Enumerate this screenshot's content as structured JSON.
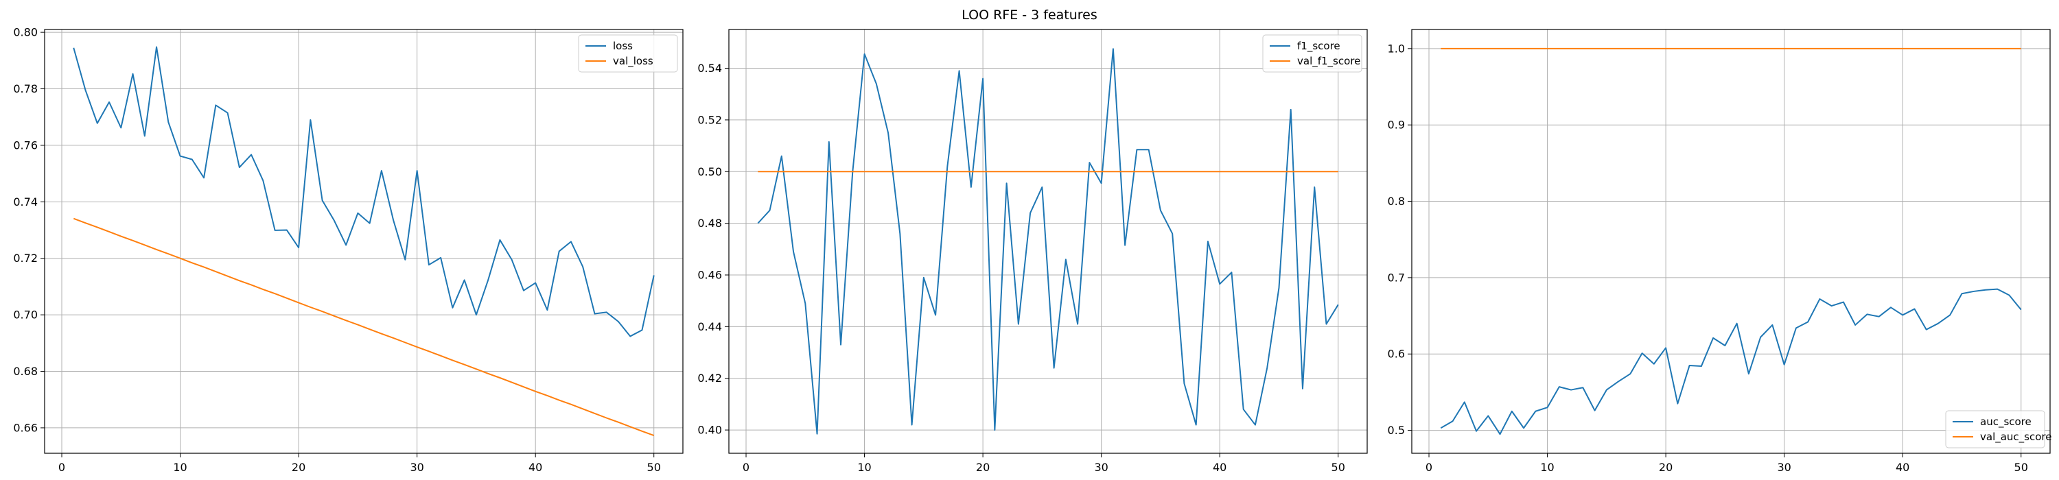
{
  "figure": {
    "title": "LOO RFE - 3 features"
  },
  "chart_data": [
    {
      "type": "line",
      "title": "",
      "xlabel": "",
      "ylabel": "",
      "xlim": [
        -1.45,
        52.45
      ],
      "ylim": [
        0.651,
        0.801
      ],
      "xticks": [
        0,
        10,
        20,
        30,
        40,
        50
      ],
      "yticks": [
        0.66,
        0.68,
        0.7,
        0.72,
        0.74,
        0.76,
        0.78,
        0.8
      ],
      "ytick_labels": [
        "0.66",
        "0.68",
        "0.70",
        "0.72",
        "0.74",
        "0.76",
        "0.78",
        "0.80"
      ],
      "grid": true,
      "legend_position": "top-right",
      "x": [
        1,
        2,
        3,
        4,
        5,
        6,
        7,
        8,
        9,
        10,
        11,
        12,
        13,
        14,
        15,
        16,
        17,
        18,
        19,
        20,
        21,
        22,
        23,
        24,
        25,
        26,
        27,
        28,
        29,
        30,
        31,
        32,
        33,
        34,
        35,
        36,
        37,
        38,
        39,
        40,
        41,
        42,
        43,
        44,
        45,
        46,
        47,
        48,
        49,
        50
      ],
      "series": [
        {
          "name": "loss",
          "color": "#1f77b4",
          "values": [
            0.7945,
            0.7795,
            0.7678,
            0.7753,
            0.7662,
            0.7853,
            0.7633,
            0.7948,
            0.7682,
            0.7562,
            0.755,
            0.7485,
            0.7742,
            0.7715,
            0.7522,
            0.7567,
            0.7475,
            0.7299,
            0.73,
            0.7238,
            0.769,
            0.7405,
            0.7334,
            0.7247,
            0.736,
            0.7324,
            0.751,
            0.7335,
            0.7195,
            0.751,
            0.7177,
            0.7202,
            0.7025,
            0.7123,
            0.7,
            0.7123,
            0.7265,
            0.7195,
            0.7086,
            0.7113,
            0.7017,
            0.7225,
            0.7259,
            0.717,
            0.7004,
            0.7009,
            0.6976,
            0.6924,
            0.6946,
            0.714
          ]
        },
        {
          "name": "val_loss",
          "color": "#ff7f0e",
          "values": [
            0.7341,
            0.7325,
            0.731,
            0.7294,
            0.7278,
            0.7263,
            0.7247,
            0.7231,
            0.7216,
            0.72,
            0.7184,
            0.7169,
            0.7153,
            0.7137,
            0.7121,
            0.7106,
            0.709,
            0.7075,
            0.7059,
            0.7043,
            0.7027,
            0.7012,
            0.6996,
            0.698,
            0.6965,
            0.6949,
            0.6933,
            0.6918,
            0.6902,
            0.6886,
            0.6871,
            0.6855,
            0.6839,
            0.6824,
            0.6808,
            0.6792,
            0.6777,
            0.6761,
            0.6745,
            0.6729,
            0.6714,
            0.6698,
            0.6683,
            0.6667,
            0.6651,
            0.6635,
            0.662,
            0.6604,
            0.6588,
            0.6573
          ]
        }
      ]
    },
    {
      "type": "line",
      "title": "",
      "xlabel": "",
      "ylabel": "",
      "xlim": [
        -1.45,
        52.45
      ],
      "ylim": [
        0.391,
        0.555
      ],
      "xticks": [
        0,
        10,
        20,
        30,
        40,
        50
      ],
      "yticks": [
        0.4,
        0.42,
        0.44,
        0.46,
        0.48,
        0.5,
        0.52,
        0.54
      ],
      "ytick_labels": [
        "0.40",
        "0.42",
        "0.44",
        "0.46",
        "0.48",
        "0.50",
        "0.52",
        "0.54"
      ],
      "grid": true,
      "legend_position": "top-right",
      "x": [
        1,
        2,
        3,
        4,
        5,
        6,
        7,
        8,
        9,
        10,
        11,
        12,
        13,
        14,
        15,
        16,
        17,
        18,
        19,
        20,
        21,
        22,
        23,
        24,
        25,
        26,
        27,
        28,
        29,
        30,
        31,
        32,
        33,
        34,
        35,
        36,
        37,
        38,
        39,
        40,
        41,
        42,
        43,
        44,
        45,
        46,
        47,
        48,
        49,
        50
      ],
      "series": [
        {
          "name": "f1_score",
          "color": "#1f77b4",
          "values": [
            0.48,
            0.485,
            0.506,
            0.469,
            0.449,
            0.3985,
            0.5115,
            0.433,
            0.5,
            0.5455,
            0.534,
            0.515,
            0.476,
            0.402,
            0.459,
            0.4445,
            0.502,
            0.539,
            0.494,
            0.536,
            0.4,
            0.4955,
            0.441,
            0.484,
            0.494,
            0.424,
            0.466,
            0.441,
            0.5035,
            0.4955,
            0.5475,
            0.4715,
            0.5085,
            0.5085,
            0.485,
            0.476,
            0.418,
            0.402,
            0.473,
            0.4565,
            0.461,
            0.408,
            0.402,
            0.424,
            0.455,
            0.524,
            0.416,
            0.494,
            0.441,
            0.4485
          ]
        },
        {
          "name": "val_f1_score",
          "color": "#ff7f0e",
          "values": [
            0.5,
            0.5,
            0.5,
            0.5,
            0.5,
            0.5,
            0.5,
            0.5,
            0.5,
            0.5,
            0.5,
            0.5,
            0.5,
            0.5,
            0.5,
            0.5,
            0.5,
            0.5,
            0.5,
            0.5,
            0.5,
            0.5,
            0.5,
            0.5,
            0.5,
            0.5,
            0.5,
            0.5,
            0.5,
            0.5,
            0.5,
            0.5,
            0.5,
            0.5,
            0.5,
            0.5,
            0.5,
            0.5,
            0.5,
            0.5,
            0.5,
            0.5,
            0.5,
            0.5,
            0.5,
            0.5,
            0.5,
            0.5,
            0.5,
            0.5
          ]
        }
      ]
    },
    {
      "type": "line",
      "title": "",
      "xlabel": "",
      "ylabel": "",
      "xlim": [
        -1.45,
        52.45
      ],
      "ylim": [
        0.47,
        1.025
      ],
      "xticks": [
        0,
        10,
        20,
        30,
        40,
        50
      ],
      "yticks": [
        0.5,
        0.6,
        0.7,
        0.8,
        0.9,
        1.0
      ],
      "ytick_labels": [
        "0.5",
        "0.6",
        "0.7",
        "0.8",
        "0.9",
        "1.0"
      ],
      "grid": true,
      "legend_position": "bottom-right",
      "x": [
        1,
        2,
        3,
        4,
        5,
        6,
        7,
        8,
        9,
        10,
        11,
        12,
        13,
        14,
        15,
        16,
        17,
        18,
        19,
        20,
        21,
        22,
        23,
        24,
        25,
        26,
        27,
        28,
        29,
        30,
        31,
        32,
        33,
        34,
        35,
        36,
        37,
        38,
        39,
        40,
        41,
        42,
        43,
        44,
        45,
        46,
        47,
        48,
        49,
        50
      ],
      "series": [
        {
          "name": "auc_score",
          "color": "#1f77b4",
          "values": [
            0.503,
            0.512,
            0.537,
            0.499,
            0.519,
            0.495,
            0.525,
            0.503,
            0.525,
            0.53,
            0.557,
            0.553,
            0.556,
            0.526,
            0.553,
            0.564,
            0.574,
            0.601,
            0.587,
            0.608,
            0.535,
            0.585,
            0.584,
            0.621,
            0.611,
            0.64,
            0.574,
            0.622,
            0.638,
            0.586,
            0.634,
            0.642,
            0.672,
            0.663,
            0.668,
            0.638,
            0.652,
            0.649,
            0.661,
            0.651,
            0.659,
            0.632,
            0.64,
            0.651,
            0.679,
            0.682,
            0.684,
            0.685,
            0.677,
            0.658
          ]
        },
        {
          "name": "val_auc_score",
          "color": "#ff7f0e",
          "values": [
            1.0,
            1.0,
            1.0,
            1.0,
            1.0,
            1.0,
            1.0,
            1.0,
            1.0,
            1.0,
            1.0,
            1.0,
            1.0,
            1.0,
            1.0,
            1.0,
            1.0,
            1.0,
            1.0,
            1.0,
            1.0,
            1.0,
            1.0,
            1.0,
            1.0,
            1.0,
            1.0,
            1.0,
            1.0,
            1.0,
            1.0,
            1.0,
            1.0,
            1.0,
            1.0,
            1.0,
            1.0,
            1.0,
            1.0,
            1.0,
            1.0,
            1.0,
            1.0,
            1.0,
            1.0,
            1.0,
            1.0,
            1.0,
            1.0,
            1.0
          ]
        }
      ]
    }
  ]
}
